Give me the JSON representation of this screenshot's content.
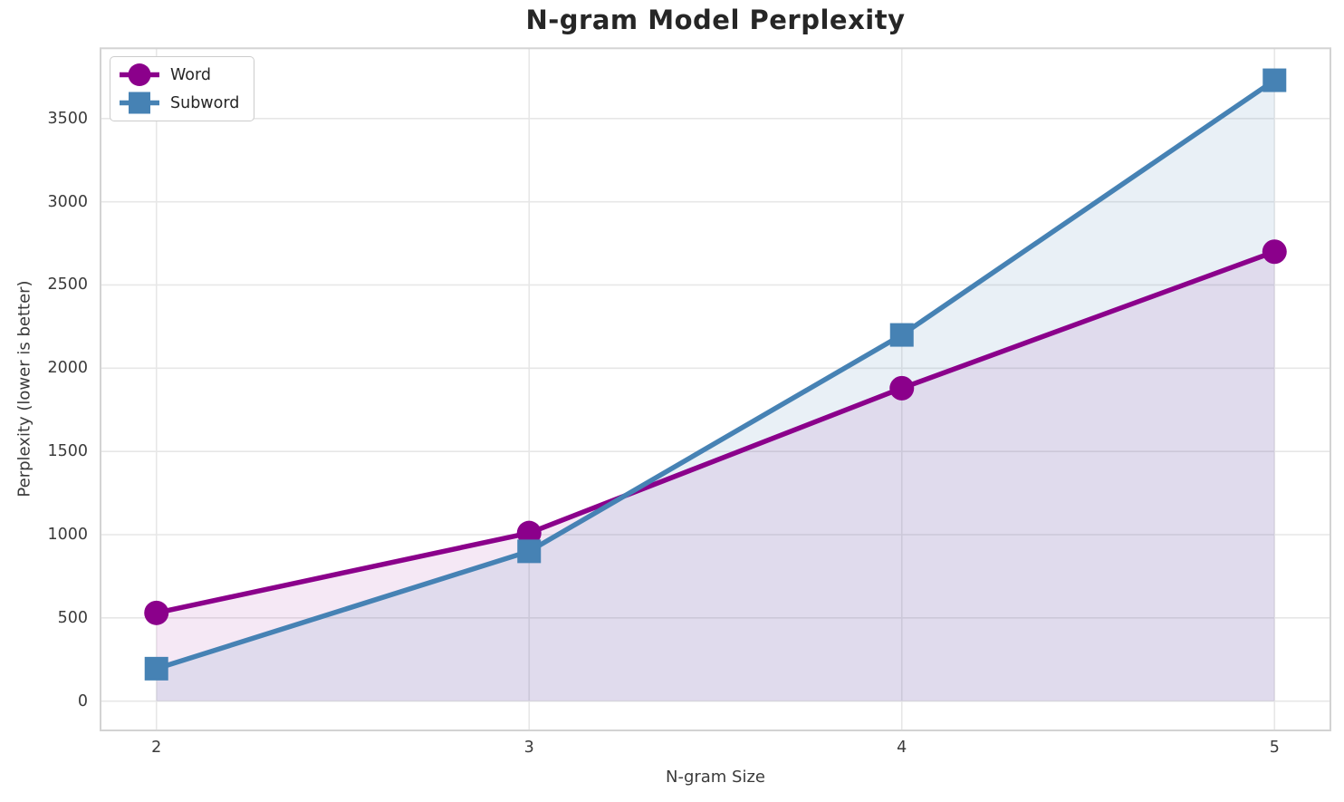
{
  "chart_data": {
    "type": "line",
    "title": "N-gram Model Perplexity",
    "xlabel": "N-gram Size",
    "ylabel": "Perplexity (lower is better)",
    "x": [
      2,
      3,
      4,
      5
    ],
    "xtick_labels": [
      "2",
      "3",
      "4",
      "5"
    ],
    "yticks": [
      0,
      500,
      1000,
      1500,
      2000,
      2500,
      3000,
      3500
    ],
    "xlim": [
      1.85,
      5.15
    ],
    "ylim": [
      -176,
      3922
    ],
    "grid": true,
    "legend_position": "upper-left",
    "area_baseline": 0,
    "series": [
      {
        "name": "Word",
        "marker": "circle",
        "color": "#8B008B",
        "fill_opacity": 0.09,
        "values": [
          530,
          1010,
          1880,
          2700
        ]
      },
      {
        "name": "Subword",
        "marker": "square",
        "color": "#4682B4",
        "fill_opacity": 0.12,
        "values": [
          195,
          900,
          2200,
          3730
        ]
      }
    ]
  }
}
